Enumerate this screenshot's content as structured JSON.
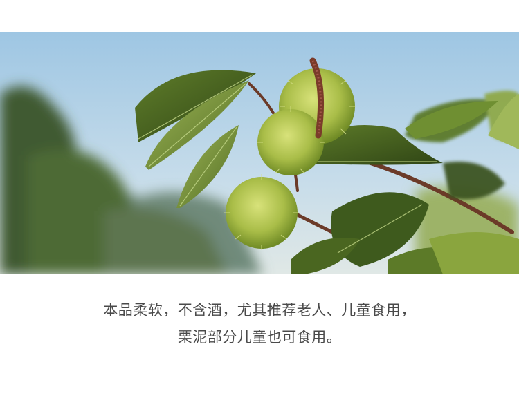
{
  "photo": {
    "subject_icon": "chestnut-burr-branch-photo",
    "colors": {
      "sky_top": "#a9cde6",
      "sky_bottom": "#d7e6ee",
      "leaf_dark": "#3f5a1e",
      "leaf_light": "#8aa840",
      "burr": "#a7bd4a",
      "stem": "#6e3b2a"
    }
  },
  "caption": {
    "line1": "本品柔软，不含酒，尤其推荐老人、儿童食用，",
    "line2": "栗泥部分儿童也可食用。"
  }
}
